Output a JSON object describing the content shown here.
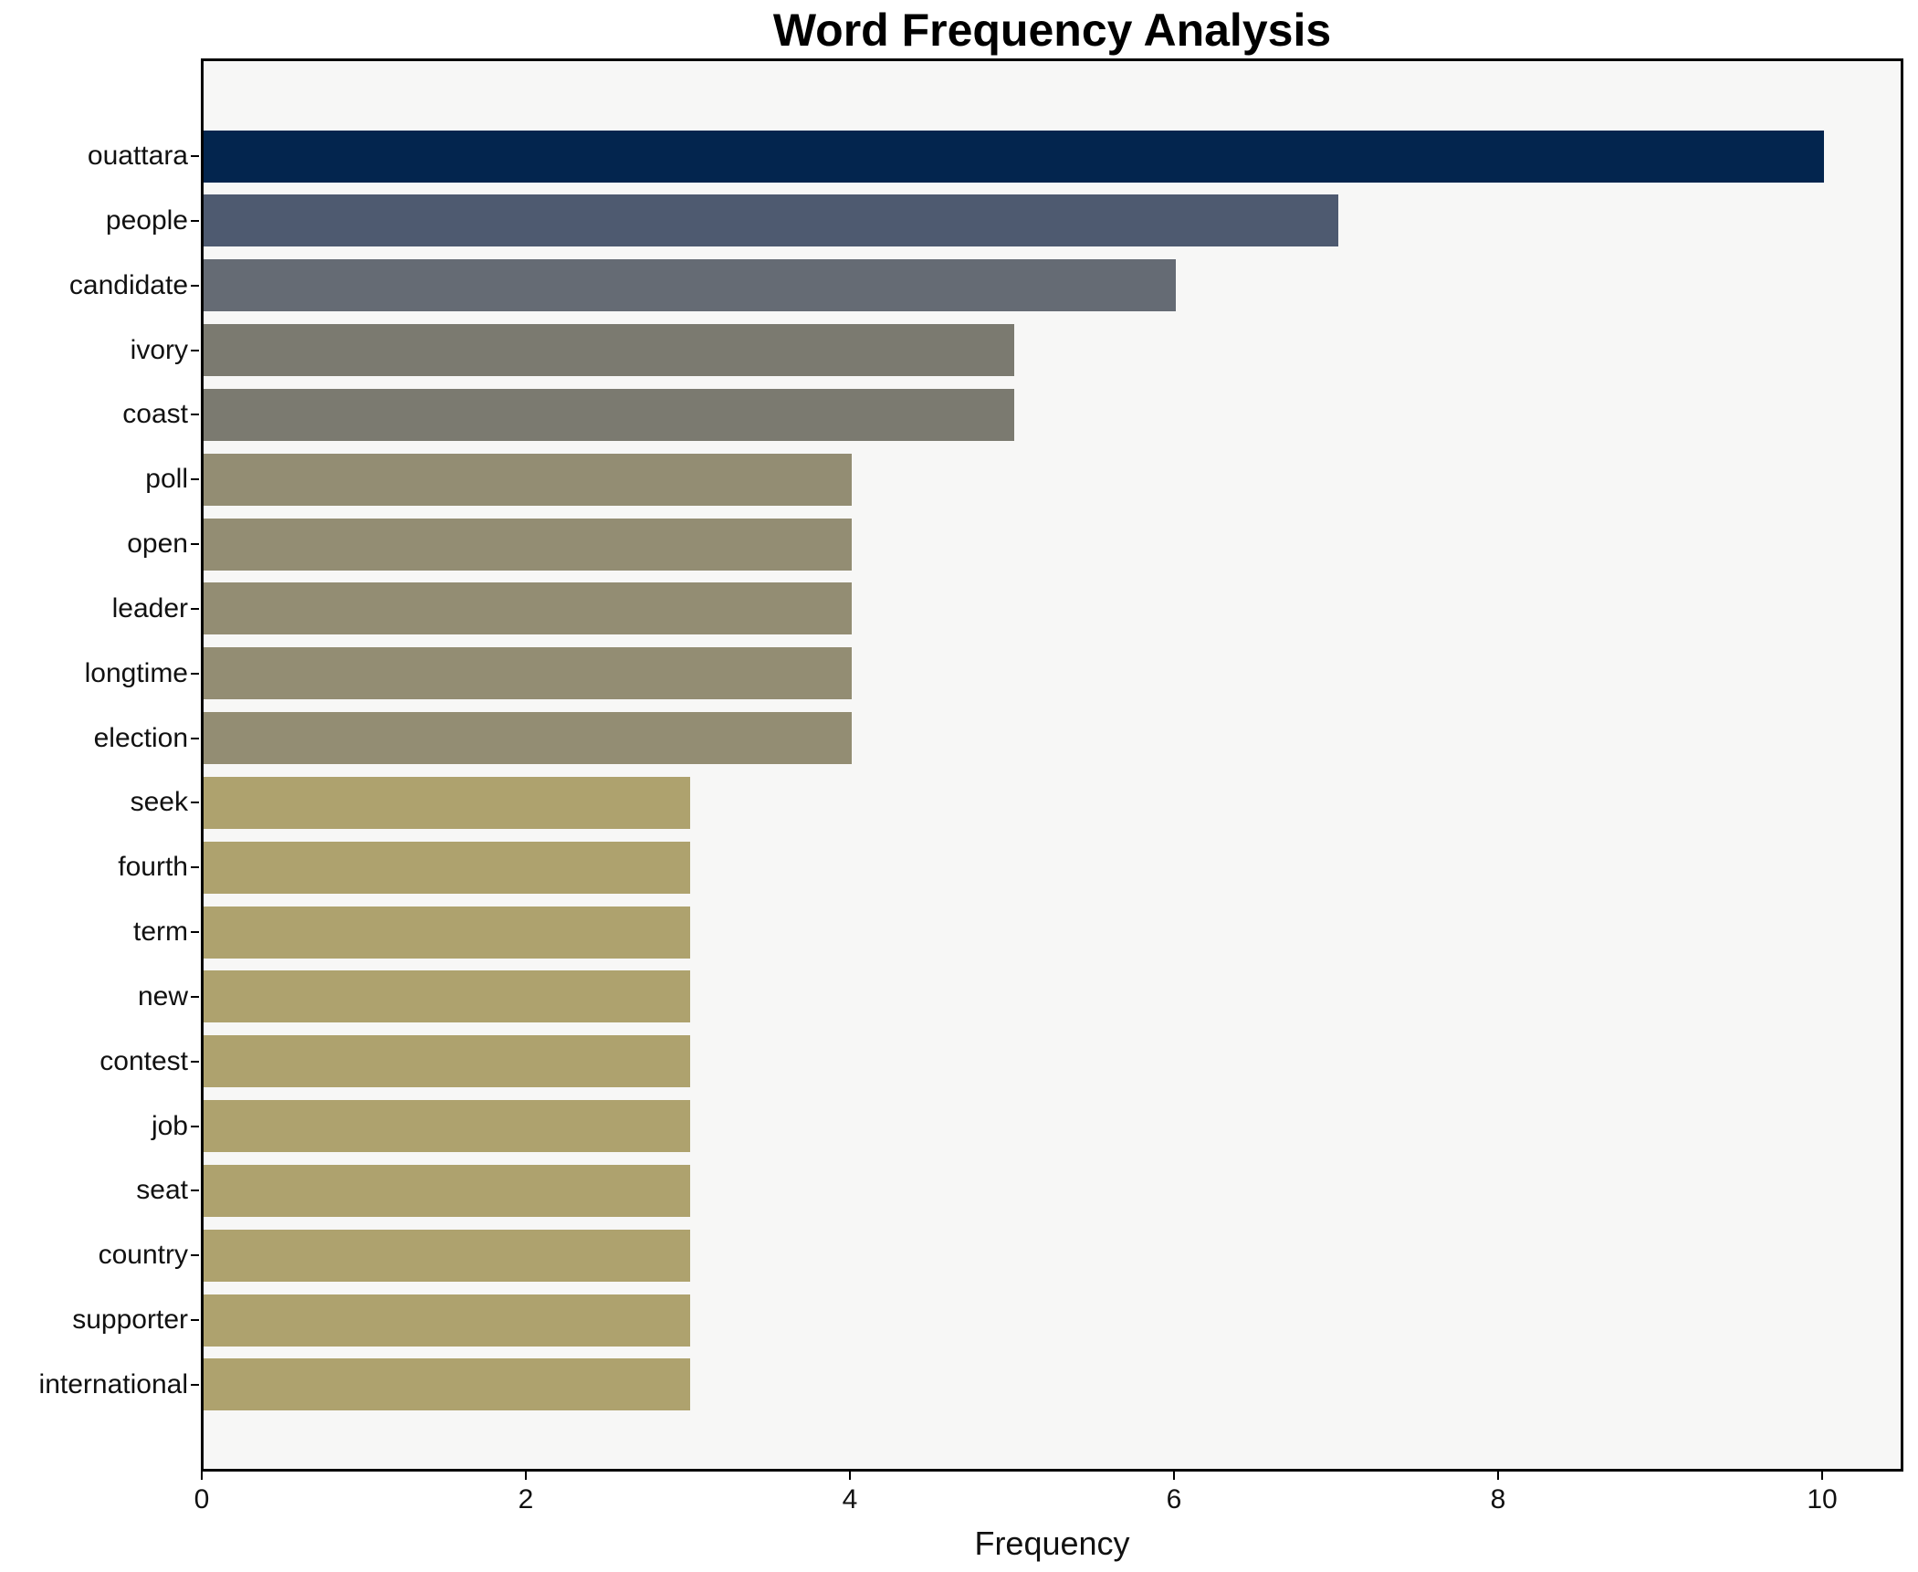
{
  "title": "Word Frequency Analysis",
  "chart_data": {
    "type": "bar",
    "orientation": "horizontal",
    "title": "Word Frequency Analysis",
    "xlabel": "Frequency",
    "categories": [
      "ouattara",
      "people",
      "candidate",
      "ivory",
      "coast",
      "poll",
      "open",
      "leader",
      "longtime",
      "election",
      "seek",
      "fourth",
      "term",
      "new",
      "contest",
      "job",
      "seat",
      "country",
      "supporter",
      "international"
    ],
    "values": [
      10,
      7,
      6,
      5,
      5,
      4,
      4,
      4,
      4,
      4,
      3,
      3,
      3,
      3,
      3,
      3,
      3,
      3,
      3,
      3
    ],
    "bar_colors": [
      "#03254e",
      "#4e5a70",
      "#656b74",
      "#7b7a70",
      "#7b7a70",
      "#938d73",
      "#938d73",
      "#938d73",
      "#938d73",
      "#938d73",
      "#aea26e",
      "#aea26e",
      "#aea26e",
      "#aea26e",
      "#aea26e",
      "#aea26e",
      "#aea26e",
      "#aea26e",
      "#aea26e",
      "#aea26e"
    ],
    "xlim": [
      0,
      10.5
    ],
    "xticks": [
      0,
      2,
      4,
      6,
      8,
      10
    ],
    "grid": false,
    "legend": null,
    "plot_background": "#f7f7f6",
    "figure_background": "#ffffff",
    "spine_color": "#000000",
    "text_color": "#111111"
  }
}
